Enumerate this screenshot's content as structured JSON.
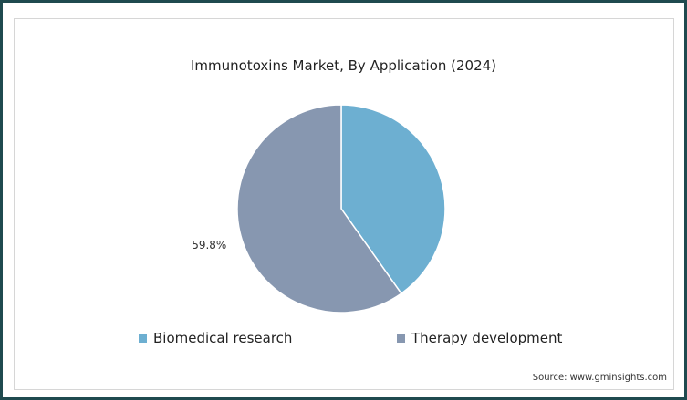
{
  "chart_data": {
    "type": "pie",
    "title": "Immunotoxins Market, By Application (2024)",
    "slices": [
      {
        "name": "Biomedical research",
        "value": 40.2,
        "color": "#6dafd1",
        "label": ""
      },
      {
        "name": "Therapy development",
        "value": 59.8,
        "color": "#8797b0",
        "label": "59.8%"
      }
    ],
    "legend_position": "bottom",
    "source": "Source: www.gminsights.com"
  }
}
